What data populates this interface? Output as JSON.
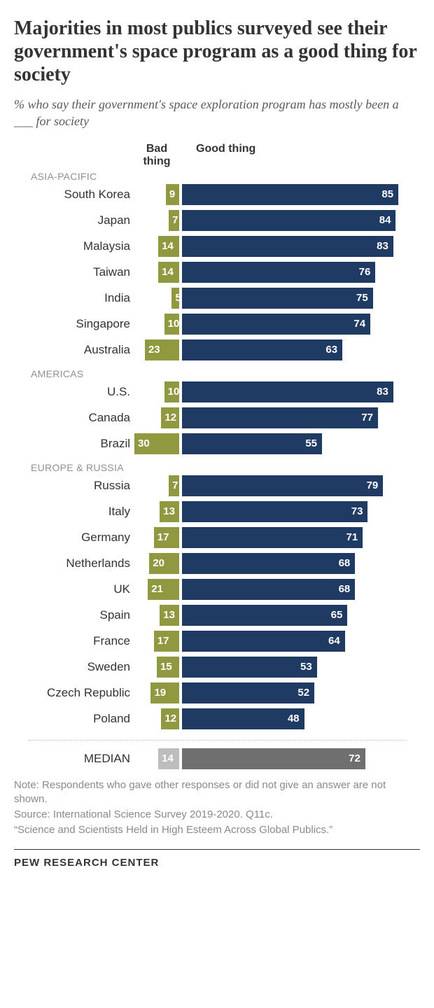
{
  "title": "Majorities in most publics surveyed see their government's space program as a good thing for society",
  "subtitle": "% who say their government's space exploration program has mostly been a ___ for society",
  "legend": {
    "bad": "Bad thing",
    "good": "Good thing"
  },
  "colors": {
    "bad_bar": "#90993f",
    "good_bar": "#1f3a63",
    "median_bad": "#bdbdbd",
    "median_good": "#6f6f6f",
    "text_on_bar": "#ffffff"
  },
  "chart": {
    "scale_max": 88,
    "left_slot_max": 30,
    "groups": [
      {
        "label": "ASIA-PACIFIC",
        "rows": [
          {
            "label": "South Korea",
            "bad": 9,
            "good": 85
          },
          {
            "label": "Japan",
            "bad": 7,
            "good": 84
          },
          {
            "label": "Malaysia",
            "bad": 14,
            "good": 83
          },
          {
            "label": "Taiwan",
            "bad": 14,
            "good": 76
          },
          {
            "label": "India",
            "bad": 5,
            "good": 75
          },
          {
            "label": "Singapore",
            "bad": 10,
            "good": 74
          },
          {
            "label": "Australia",
            "bad": 23,
            "good": 63
          }
        ]
      },
      {
        "label": "AMERICAS",
        "rows": [
          {
            "label": "U.S.",
            "bad": 10,
            "good": 83
          },
          {
            "label": "Canada",
            "bad": 12,
            "good": 77
          },
          {
            "label": "Brazil",
            "bad": 30,
            "good": 55
          }
        ]
      },
      {
        "label": "EUROPE & RUSSIA",
        "rows": [
          {
            "label": "Russia",
            "bad": 7,
            "good": 79
          },
          {
            "label": "Italy",
            "bad": 13,
            "good": 73
          },
          {
            "label": "Germany",
            "bad": 17,
            "good": 71
          },
          {
            "label": "Netherlands",
            "bad": 20,
            "good": 68
          },
          {
            "label": "UK",
            "bad": 21,
            "good": 68
          },
          {
            "label": "Spain",
            "bad": 13,
            "good": 65
          },
          {
            "label": "France",
            "bad": 17,
            "good": 64
          },
          {
            "label": "Sweden",
            "bad": 15,
            "good": 53
          },
          {
            "label": "Czech Republic",
            "bad": 19,
            "good": 52
          },
          {
            "label": "Poland",
            "bad": 12,
            "good": 48
          }
        ]
      }
    ],
    "median": {
      "label": "MEDIAN",
      "bad": 14,
      "good": 72
    }
  },
  "note": "Note: Respondents who gave other responses or did not give an answer are not shown.",
  "source": "Source: International Science Survey 2019-2020. Q11c.",
  "quote": "“Science and Scientists Held in High Esteem Across Global Publics.”",
  "logo": "PEW RESEARCH CENTER"
}
